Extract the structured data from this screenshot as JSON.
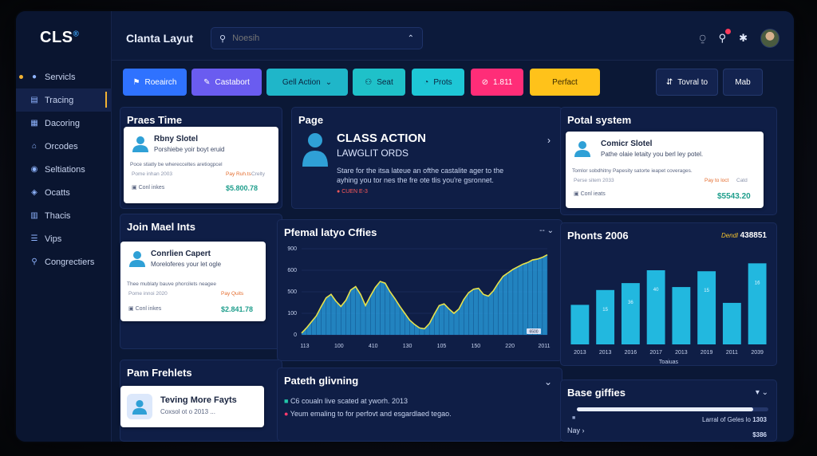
{
  "app": {
    "logo": "CLS",
    "logo_mark": "®",
    "title": "Clanta Layut"
  },
  "search": {
    "placeholder": "Noesih"
  },
  "sidebar": {
    "items": [
      {
        "label": "Servicls",
        "icon": "dot",
        "active": false
      },
      {
        "label": "Tracing",
        "icon": "doc",
        "active": true
      },
      {
        "label": "Dacoring",
        "icon": "grid",
        "active": false
      },
      {
        "label": "Orcodes",
        "icon": "home",
        "active": false
      },
      {
        "label": "Seltiations",
        "icon": "pin",
        "active": false
      },
      {
        "label": "Ocatts",
        "icon": "shield",
        "active": false
      },
      {
        "label": "Thacis",
        "icon": "table",
        "active": false
      },
      {
        "label": "Vips",
        "icon": "list",
        "active": false
      },
      {
        "label": "Congrectiers",
        "icon": "search",
        "active": false
      }
    ]
  },
  "toolbar": {
    "buttons": [
      {
        "label": "Roeairch",
        "color": "#2f72ff",
        "text": "#ffffff"
      },
      {
        "label": "Castabort",
        "color": "#6a5cf0",
        "text": "#ffffff"
      },
      {
        "label": "Gell Action",
        "color": "#1fb6c9",
        "text": "#0b2540"
      },
      {
        "label": "Seat",
        "color": "#1fc1c9",
        "text": "#0b2540"
      },
      {
        "label": "Prots",
        "color": "#1ec7d6",
        "text": "#0b2540"
      },
      {
        "label": "1.811",
        "color": "#ff2d78",
        "text": "#ffffff"
      },
      {
        "label": "Perfact",
        "color": "#ffc21a",
        "text": "#3b2a00"
      },
      {
        "label": "Tovral to",
        "color": "#13234f",
        "text": "#ffffff"
      },
      {
        "label": "Mab",
        "color": "#13234f",
        "text": "#ffffff"
      }
    ]
  },
  "panels": {
    "praes_time": {
      "title": "Praes Time",
      "card": {
        "name": "Rbny Slotel",
        "desc": "Porshiebe yoir boyt eruid",
        "meta": "Poce stiatly be wherecceltes aretiogpcel",
        "date": "Pome inhan 2003",
        "tag": "Pay Ruh.ts",
        "tag2": "Crelty",
        "contact": "Conl inkes",
        "amount": "$5.800.78"
      }
    },
    "page": {
      "title": "Page",
      "heading": "CLASS ACTION",
      "subheading": "LAWGLIT ORDS",
      "body1": "Stare for the itsa lateue an ofthe castalite ager to the",
      "body2": "ayhing you tor nes the fre ote tlis you're gsronnet.",
      "link": "CUEN E-3",
      "chevron": "›"
    },
    "portal": {
      "title": "Potal system",
      "card": {
        "name": "Comicr Slotel",
        "desc": "Pathe olaie letaity you berl ley potel.",
        "meta": "Tomlor sobdhitny Papesity satorte ieapet coverages.",
        "date": "Perse sitem 2033",
        "tag": "Pay to loct",
        "tag2": "Catd",
        "contact": "Conl ieats",
        "amount": "$5543.20"
      }
    },
    "join": {
      "title": "Join Mael Ints",
      "card": {
        "name": "Conrlien Capert",
        "desc": "Moreloferes your let ogle",
        "meta": "Thee mublaty bauve phorcilets neagee",
        "date": "Pome innoi 2020",
        "tag": "Pay Quits",
        "tag2": "",
        "contact": "Conl inkes",
        "amount": "$2.841.78"
      }
    },
    "pfemal": {
      "title": "Pfemal latyo Cffies",
      "legend": "-- ⌄"
    },
    "phonts": {
      "title": "Phonts 2006",
      "stat_label": "Dendl",
      "stat_value": "438851",
      "footer": "Toaiuas"
    },
    "pam": {
      "title": "Pam Frehlets",
      "card": {
        "name": "Teving More Fayts",
        "desc": "Coxsol ot o 2013 ..."
      }
    },
    "pateth": {
      "title": "Pateth glivning",
      "line1": "C6 coualn live scated at yworh. 2013",
      "line2": "Yeum emaling to for perfovt and esgardlaed tegao.",
      "chevron": "⌄"
    },
    "base": {
      "title": "Base giffies",
      "progress": 0.92,
      "row_label": "Larral of Geles lo",
      "row_value": "1303",
      "nav": "Nay",
      "footer_value": "$386"
    }
  },
  "chart_data": [
    {
      "type": "area",
      "title": "Pfemal latyo Cffies",
      "x_ticks": [
        "113",
        "100",
        "410",
        "130",
        "105",
        "150",
        "220",
        "2011"
      ],
      "y_ticks": [
        "0",
        "100",
        "500",
        "600",
        "900"
      ],
      "ylim": [
        0,
        1000
      ],
      "x": [
        0,
        1,
        2,
        3,
        4,
        5,
        6,
        7,
        8,
        9,
        10,
        11,
        12,
        13,
        14,
        15,
        16,
        17,
        18,
        19,
        20,
        21,
        22,
        23,
        24,
        25,
        26,
        27,
        28,
        29,
        30,
        31,
        32,
        33,
        34,
        35,
        36,
        37,
        38,
        39,
        40,
        41,
        42,
        43,
        44,
        45,
        46,
        47,
        48,
        49,
        50
      ],
      "values": [
        20,
        80,
        150,
        220,
        330,
        430,
        470,
        390,
        330,
        400,
        520,
        560,
        470,
        340,
        450,
        550,
        620,
        600,
        500,
        420,
        330,
        250,
        170,
        120,
        80,
        70,
        130,
        240,
        340,
        360,
        300,
        250,
        300,
        410,
        490,
        530,
        540,
        470,
        450,
        510,
        600,
        680,
        720,
        760,
        790,
        820,
        840,
        870,
        880,
        900,
        930
      ],
      "marker_label": "6500",
      "color": "#2aa6e8",
      "line_color": "#e8e24a"
    },
    {
      "type": "bar",
      "title": "Phonts 2006",
      "categories": [
        "2013",
        "2013",
        "2016",
        "2017",
        "2013",
        "2019",
        "2011",
        "2039"
      ],
      "values": [
        40,
        55,
        62,
        75,
        58,
        74,
        42,
        82
      ],
      "bar_labels": [
        "",
        "15",
        "36",
        "40",
        "",
        "15",
        "",
        "16"
      ],
      "ylim": [
        0,
        100
      ],
      "color": "#22b8df"
    }
  ]
}
